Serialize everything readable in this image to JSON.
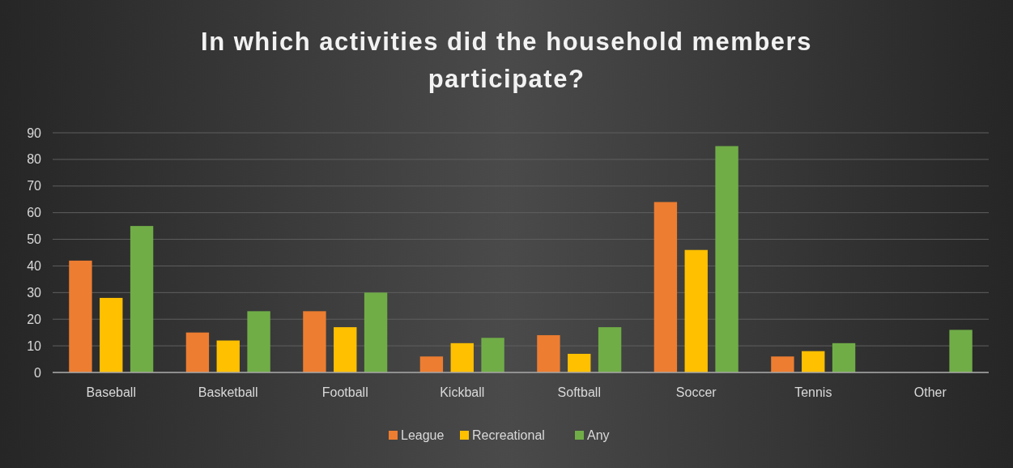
{
  "chart_data": {
    "type": "bar",
    "title": "In which activities did the household members participate?",
    "categories": [
      "Baseball",
      "Basketball",
      "Football",
      "Kickball",
      "Softball",
      "Soccer",
      "Tennis",
      "Other"
    ],
    "series": [
      {
        "name": "League",
        "color": "#ed7d31",
        "values": [
          42,
          15,
          23,
          6,
          14,
          64,
          6,
          null
        ]
      },
      {
        "name": "Recreational",
        "color": "#ffc000",
        "values": [
          28,
          12,
          17,
          11,
          7,
          46,
          8,
          null
        ]
      },
      {
        "name": "Any",
        "color": "#70ad47",
        "values": [
          55,
          23,
          30,
          13,
          17,
          85,
          11,
          16
        ]
      }
    ],
    "ylim": [
      0,
      90
    ],
    "yticks": [
      0,
      10,
      20,
      30,
      40,
      50,
      60,
      70,
      80,
      90
    ],
    "grid": "y",
    "legend": "bottom"
  }
}
